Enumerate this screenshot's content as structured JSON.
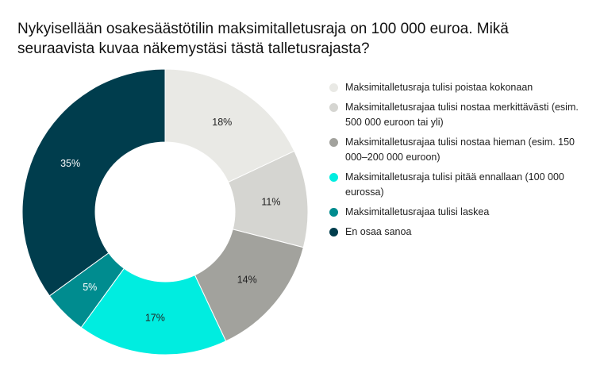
{
  "chart_data": {
    "type": "pie",
    "title": "Nykyisellään osakesäästötilin maksimitalletusraja on 100 000 euroa. Mikä seuraavista kuvaa näkemystäsi tästä talletusrajasta?",
    "donut": true,
    "legend_position": "right",
    "slices": [
      {
        "label": "Maksimitalletusraja tulisi poistaa kokonaan",
        "value": 18,
        "display": "18%",
        "color": "#e9e9e5",
        "text_color": "#222222"
      },
      {
        "label": "Maksimitalletusrajaa tulisi nostaa merkittävästi (esim. 500 000 euroon tai yli)",
        "value": 11,
        "display": "11%",
        "color": "#d5d5d1",
        "text_color": "#222222"
      },
      {
        "label": "Maksimitalletusrajaa tulisi nostaa hieman (esim. 150 000–200 000 euroon)",
        "value": 14,
        "display": "14%",
        "color": "#a2a29d",
        "text_color": "#222222"
      },
      {
        "label": "Maksimitalletusraja tulisi pitää ennallaan (100 000 eurossa)",
        "value": 17,
        "display": "17%",
        "color": "#00ede0",
        "text_color": "#222222"
      },
      {
        "label": "Maksimitalletusrajaa tulisi laskea",
        "value": 5,
        "display": "5%",
        "color": "#008c8f",
        "text_color": "#ffffff"
      },
      {
        "label": "En osaa sanoa",
        "value": 35,
        "display": "35%",
        "color": "#003d4d",
        "text_color": "#ffffff"
      }
    ]
  }
}
